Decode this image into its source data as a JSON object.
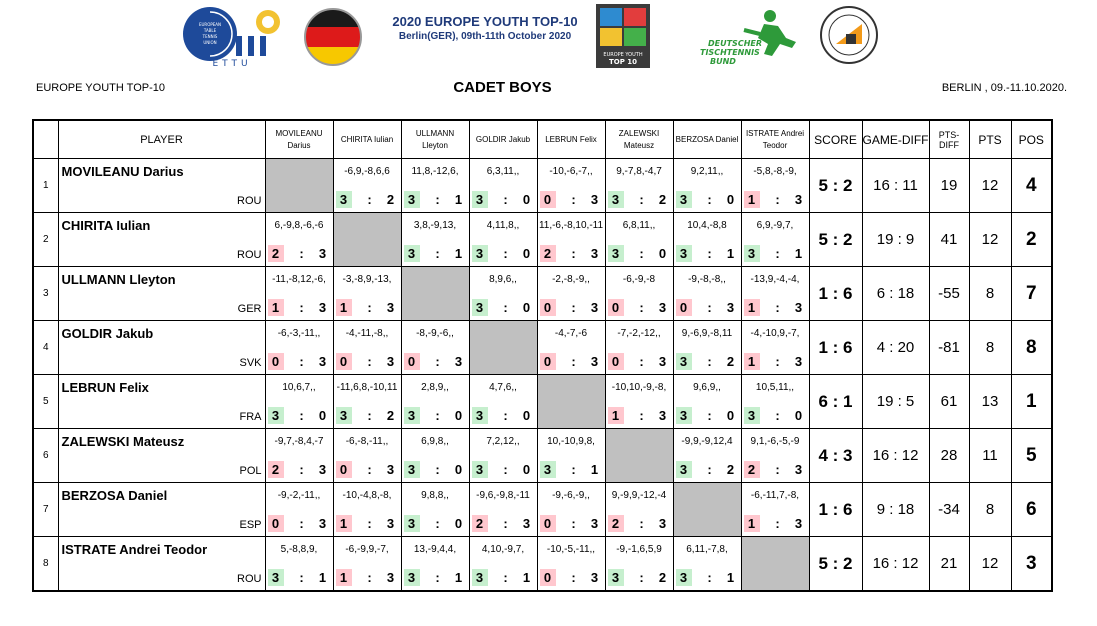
{
  "header": {
    "event_title": "2020 EUROPE YOUTH TOP-10",
    "event_sub": "Berlin(GER), 09th-11th October 2020",
    "ettu_lines": [
      "EUROPEAN",
      "TABLE",
      "TENNIS",
      "UNION"
    ],
    "ettu_word": "ETTU",
    "ey_lines": [
      "EUROPE YOUTH",
      "TOP 10"
    ],
    "dttb_lines": [
      "DEUTSCHER",
      "TISCHTENNIS",
      "BUND"
    ],
    "left": "EUROPE YOUTH TOP-10",
    "center": "CADET BOYS",
    "right": "BERLIN , 09.-11.10.2020."
  },
  "columns": {
    "player": "PLAYER",
    "opponents": [
      [
        "MOVILEANU",
        "Darius"
      ],
      [
        "CHIRITA Iulian",
        ""
      ],
      [
        "ULLMANN",
        "Lleyton"
      ],
      [
        "GOLDIR Jakub",
        ""
      ],
      [
        "LEBRUN Felix",
        ""
      ],
      [
        "ZALEWSKI",
        "Mateusz"
      ],
      [
        "BERZOSA Daniel",
        ""
      ],
      [
        "ISTRATE Andrei",
        "Teodor"
      ]
    ],
    "score": "SCORE",
    "game_diff": "GAME-DIFF",
    "pts_diff": "PTS-DIFF",
    "pts": "PTS",
    "pos": "POS"
  },
  "players": [
    {
      "no": "1",
      "name": "MOVILEANU Darius",
      "country": "ROU",
      "matches": [
        null,
        {
          "sets": "-6,9,-8,6,6",
          "a": "3",
          "b": "2",
          "w": true
        },
        {
          "sets": "11,8,-12,6,",
          "a": "3",
          "b": "1",
          "w": true
        },
        {
          "sets": "6,3,11,,",
          "a": "3",
          "b": "0",
          "w": true
        },
        {
          "sets": "-10,-6,-7,,",
          "a": "0",
          "b": "3",
          "w": false
        },
        {
          "sets": "9,-7,8,-4,7",
          "a": "3",
          "b": "2",
          "w": true
        },
        {
          "sets": "9,2,11,,",
          "a": "3",
          "b": "0",
          "w": true
        },
        {
          "sets": "-5,8,-8,-9,",
          "a": "1",
          "b": "3",
          "w": false
        }
      ],
      "score": "5 : 2",
      "game_diff": "16 : 11",
      "pts_diff": "19",
      "pts": "12",
      "pos": "4"
    },
    {
      "no": "2",
      "name": "CHIRITA Iulian",
      "country": "ROU",
      "matches": [
        {
          "sets": "6,-9,8,-6,-6",
          "a": "2",
          "b": "3",
          "w": false
        },
        null,
        {
          "sets": "3,8,-9,13,",
          "a": "3",
          "b": "1",
          "w": true
        },
        {
          "sets": "4,11,8,,",
          "a": "3",
          "b": "0",
          "w": true
        },
        {
          "sets": "11,-6,-8,10,-11",
          "a": "2",
          "b": "3",
          "w": false
        },
        {
          "sets": "6,8,11,,",
          "a": "3",
          "b": "0",
          "w": true
        },
        {
          "sets": "10,4,-8,8",
          "a": "3",
          "b": "1",
          "w": true
        },
        {
          "sets": "6,9,-9,7,",
          "a": "3",
          "b": "1",
          "w": true
        }
      ],
      "score": "5 : 2",
      "game_diff": "19 : 9",
      "pts_diff": "41",
      "pts": "12",
      "pos": "2"
    },
    {
      "no": "3",
      "name": "ULLMANN Lleyton",
      "country": "GER",
      "matches": [
        {
          "sets": "-11,-8,12,-6,",
          "a": "1",
          "b": "3",
          "w": false
        },
        {
          "sets": "-3,-8,9,-13,",
          "a": "1",
          "b": "3",
          "w": false
        },
        null,
        {
          "sets": "8,9,6,,",
          "a": "3",
          "b": "0",
          "w": true
        },
        {
          "sets": "-2,-8,-9,,",
          "a": "0",
          "b": "3",
          "w": false
        },
        {
          "sets": "-6,-9,-8",
          "a": "0",
          "b": "3",
          "w": false
        },
        {
          "sets": "-9,-8,-8,,",
          "a": "0",
          "b": "3",
          "w": false
        },
        {
          "sets": "-13,9,-4,-4,",
          "a": "1",
          "b": "3",
          "w": false
        }
      ],
      "score": "1 : 6",
      "game_diff": "6 : 18",
      "pts_diff": "-55",
      "pts": "8",
      "pos": "7"
    },
    {
      "no": "4",
      "name": "GOLDIR Jakub",
      "country": "SVK",
      "matches": [
        {
          "sets": "-6,-3,-11,,",
          "a": "0",
          "b": "3",
          "w": false
        },
        {
          "sets": "-4,-11,-8,,",
          "a": "0",
          "b": "3",
          "w": false
        },
        {
          "sets": "-8,-9,-6,,",
          "a": "0",
          "b": "3",
          "w": false
        },
        null,
        {
          "sets": "-4,-7,-6",
          "a": "0",
          "b": "3",
          "w": false
        },
        {
          "sets": "-7,-2,-12,,",
          "a": "0",
          "b": "3",
          "w": false
        },
        {
          "sets": "9,-6,9,-8,11",
          "a": "3",
          "b": "2",
          "w": true
        },
        {
          "sets": "-4,-10,9,-7,",
          "a": "1",
          "b": "3",
          "w": false
        }
      ],
      "score": "1 : 6",
      "game_diff": "4 : 20",
      "pts_diff": "-81",
      "pts": "8",
      "pos": "8"
    },
    {
      "no": "5",
      "name": "LEBRUN Felix",
      "country": "FRA",
      "matches": [
        {
          "sets": "10,6,7,,",
          "a": "3",
          "b": "0",
          "w": true
        },
        {
          "sets": "-11,6,8,-10,11",
          "a": "3",
          "b": "2",
          "w": true
        },
        {
          "sets": "2,8,9,,",
          "a": "3",
          "b": "0",
          "w": true
        },
        {
          "sets": "4,7,6,,",
          "a": "3",
          "b": "0",
          "w": true
        },
        null,
        {
          "sets": "-10,10,-9,-8,",
          "a": "1",
          "b": "3",
          "w": false
        },
        {
          "sets": "9,6,9,,",
          "a": "3",
          "b": "0",
          "w": true
        },
        {
          "sets": "10,5,11,,",
          "a": "3",
          "b": "0",
          "w": true
        }
      ],
      "score": "6 : 1",
      "game_diff": "19 : 5",
      "pts_diff": "61",
      "pts": "13",
      "pos": "1"
    },
    {
      "no": "6",
      "name": "ZALEWSKI Mateusz",
      "country": "POL",
      "matches": [
        {
          "sets": "-9,7,-8,4,-7",
          "a": "2",
          "b": "3",
          "w": false
        },
        {
          "sets": "-6,-8,-11,,",
          "a": "0",
          "b": "3",
          "w": false
        },
        {
          "sets": "6,9,8,,",
          "a": "3",
          "b": "0",
          "w": true
        },
        {
          "sets": "7,2,12,,",
          "a": "3",
          "b": "0",
          "w": true
        },
        {
          "sets": "10,-10,9,8,",
          "a": "3",
          "b": "1",
          "w": true
        },
        null,
        {
          "sets": "-9,9,-9,12,4",
          "a": "3",
          "b": "2",
          "w": true
        },
        {
          "sets": "9,1,-6,-5,-9",
          "a": "2",
          "b": "3",
          "w": false
        }
      ],
      "score": "4 : 3",
      "game_diff": "16 : 12",
      "pts_diff": "28",
      "pts": "11",
      "pos": "5"
    },
    {
      "no": "7",
      "name": "BERZOSA Daniel",
      "country": "ESP",
      "matches": [
        {
          "sets": "-9,-2,-11,,",
          "a": "0",
          "b": "3",
          "w": false
        },
        {
          "sets": "-10,-4,8,-8,",
          "a": "1",
          "b": "3",
          "w": false
        },
        {
          "sets": "9,8,8,,",
          "a": "3",
          "b": "0",
          "w": true
        },
        {
          "sets": "-9,6,-9,8,-11",
          "a": "2",
          "b": "3",
          "w": false
        },
        {
          "sets": "-9,-6,-9,,",
          "a": "0",
          "b": "3",
          "w": false
        },
        {
          "sets": "9,-9,9,-12,-4",
          "a": "2",
          "b": "3",
          "w": false
        },
        null,
        {
          "sets": "-6,-11,7,-8,",
          "a": "1",
          "b": "3",
          "w": false
        }
      ],
      "score": "1 : 6",
      "game_diff": "9 : 18",
      "pts_diff": "-34",
      "pts": "8",
      "pos": "6"
    },
    {
      "no": "8",
      "name": "ISTRATE Andrei Teodor",
      "country": "ROU",
      "matches": [
        {
          "sets": "5,-8,8,9,",
          "a": "3",
          "b": "1",
          "w": true
        },
        {
          "sets": "-6,-9,9,-7,",
          "a": "1",
          "b": "3",
          "w": false
        },
        {
          "sets": "13,-9,4,4,",
          "a": "3",
          "b": "1",
          "w": true
        },
        {
          "sets": "4,10,-9,7,",
          "a": "3",
          "b": "1",
          "w": true
        },
        {
          "sets": "-10,-5,-11,,",
          "a": "0",
          "b": "3",
          "w": false
        },
        {
          "sets": "-9,-1,6,5,9",
          "a": "3",
          "b": "2",
          "w": true
        },
        {
          "sets": "6,11,-7,8,",
          "a": "3",
          "b": "1",
          "w": true
        },
        null
      ],
      "score": "5 : 2",
      "game_diff": "16 : 12",
      "pts_diff": "21",
      "pts": "12",
      "pos": "3"
    }
  ]
}
